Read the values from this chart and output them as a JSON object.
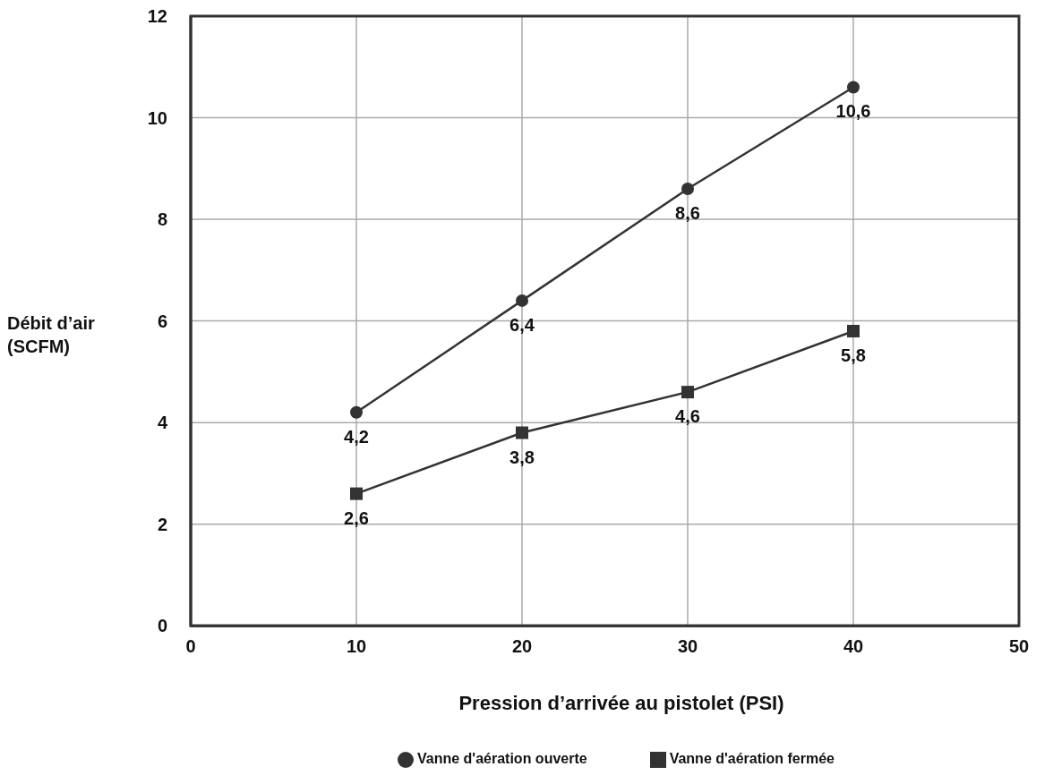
{
  "chart_data": {
    "type": "line",
    "xlabel": "Pression d’arrivée au pistolet (PSI)",
    "ylabel": "Débit d’air (SCFM)",
    "x": [
      10,
      20,
      30,
      40
    ],
    "series": [
      {
        "name": "Vanne d'aération ouverte",
        "color": "#333333",
        "marker": "circle",
        "values": [
          4.2,
          6.4,
          8.6,
          10.6
        ],
        "value_labels": [
          "4,2",
          "6,4",
          "8,6",
          "10,6"
        ]
      },
      {
        "name": "Vanne d'aération fermée",
        "color": "#333333",
        "marker": "square",
        "values": [
          2.6,
          3.8,
          4.6,
          5.8
        ],
        "value_labels": [
          "2,6",
          "3,8",
          "4,6",
          "5,8"
        ]
      }
    ],
    "xlim": [
      0,
      50
    ],
    "xticks": [
      0,
      10,
      20,
      30,
      40,
      50
    ],
    "ylim": [
      0,
      12
    ],
    "yticks": [
      0,
      2,
      4,
      6,
      8,
      10,
      12
    ],
    "grid": true,
    "legend": "bottom"
  }
}
